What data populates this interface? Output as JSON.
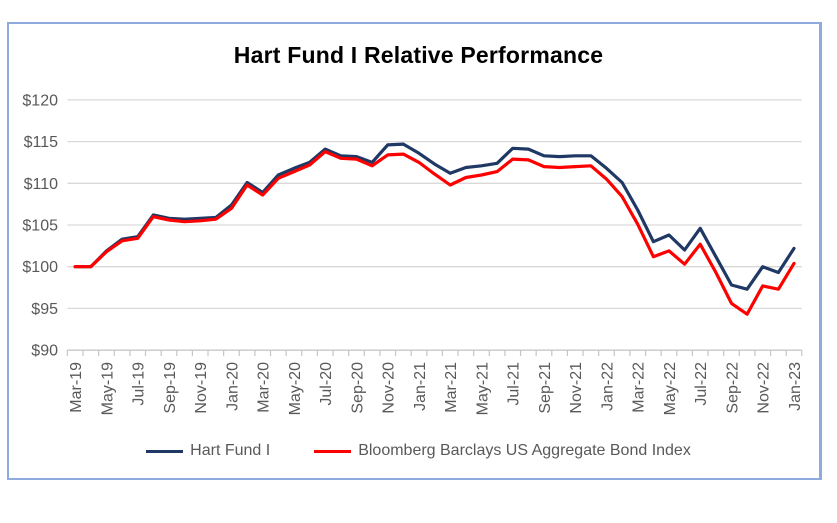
{
  "chart_data": {
    "type": "line",
    "title": "Hart Fund I Relative Performance",
    "x": [
      "Mar-19",
      "Apr-19",
      "May-19",
      "Jun-19",
      "Jul-19",
      "Aug-19",
      "Sep-19",
      "Oct-19",
      "Nov-19",
      "Dec-19",
      "Jan-20",
      "Feb-20",
      "Mar-20",
      "Apr-20",
      "May-20",
      "Jun-20",
      "Jul-20",
      "Aug-20",
      "Sep-20",
      "Oct-20",
      "Nov-20",
      "Dec-20",
      "Jan-21",
      "Feb-21",
      "Mar-21",
      "Apr-21",
      "May-21",
      "Jun-21",
      "Jul-21",
      "Aug-21",
      "Sep-21",
      "Oct-21",
      "Nov-21",
      "Dec-21",
      "Jan-22",
      "Feb-22",
      "Mar-22",
      "Apr-22",
      "May-22",
      "Jun-22",
      "Jul-22",
      "Aug-22",
      "Sep-22",
      "Oct-22",
      "Nov-22",
      "Dec-22",
      "Jan-23"
    ],
    "xtick_label_every": 2,
    "xtick_labels_shown": [
      "Mar-19",
      "May-19",
      "Jul-19",
      "Sep-19",
      "Nov-19",
      "Jan-20",
      "Mar-20",
      "May-20",
      "Jul-20",
      "Sep-20",
      "Nov-20",
      "Jan-21",
      "Mar-21",
      "May-21",
      "Jul-21",
      "Sep-21",
      "Nov-21",
      "Jan-22",
      "Mar-22",
      "May-22",
      "Jul-22",
      "Sep-22",
      "Nov-22",
      "Jan-23"
    ],
    "series": [
      {
        "name": "Hart Fund I",
        "color": "#1f3864",
        "values": [
          100.0,
          100.0,
          101.9,
          103.3,
          103.6,
          106.2,
          105.8,
          105.7,
          105.8,
          105.9,
          107.4,
          110.1,
          108.9,
          111.0,
          111.8,
          112.5,
          114.1,
          113.3,
          113.2,
          112.5,
          114.6,
          114.7,
          113.6,
          112.3,
          111.2,
          111.9,
          112.1,
          112.4,
          114.2,
          114.1,
          113.3,
          113.2,
          113.3,
          113.3,
          111.8,
          110.1,
          106.8,
          103.0,
          103.8,
          102.0,
          104.6,
          101.2,
          97.8,
          97.3,
          100.0,
          99.3,
          102.2
        ]
      },
      {
        "name": "Bloomberg Barclays US Aggregate Bond Index",
        "color": "#ff0000",
        "values": [
          100.0,
          100.0,
          101.8,
          103.1,
          103.4,
          106.0,
          105.6,
          105.4,
          105.5,
          105.7,
          107.0,
          109.8,
          108.6,
          110.6,
          111.4,
          112.2,
          113.8,
          113.0,
          112.9,
          112.1,
          113.4,
          113.5,
          112.5,
          111.1,
          109.8,
          110.7,
          111.0,
          111.4,
          112.9,
          112.8,
          112.0,
          111.9,
          112.0,
          112.1,
          110.5,
          108.4,
          105.1,
          101.2,
          101.9,
          100.3,
          102.7,
          99.3,
          95.6,
          94.3,
          97.7,
          97.3,
          100.4
        ]
      }
    ],
    "ylim": [
      90,
      120
    ],
    "ytick_step": 5,
    "ytick_labels": [
      "$90",
      "$95",
      "$100",
      "$105",
      "$110",
      "$115",
      "$120"
    ],
    "grid": true,
    "legend_position": "bottom"
  },
  "colors": {
    "frame_border": "#8faadc",
    "gridline": "#d9d9d9",
    "axis_line": "#c6c6c6",
    "axis_text": "#595959",
    "title_text": "#000000",
    "background": "#ffffff"
  }
}
